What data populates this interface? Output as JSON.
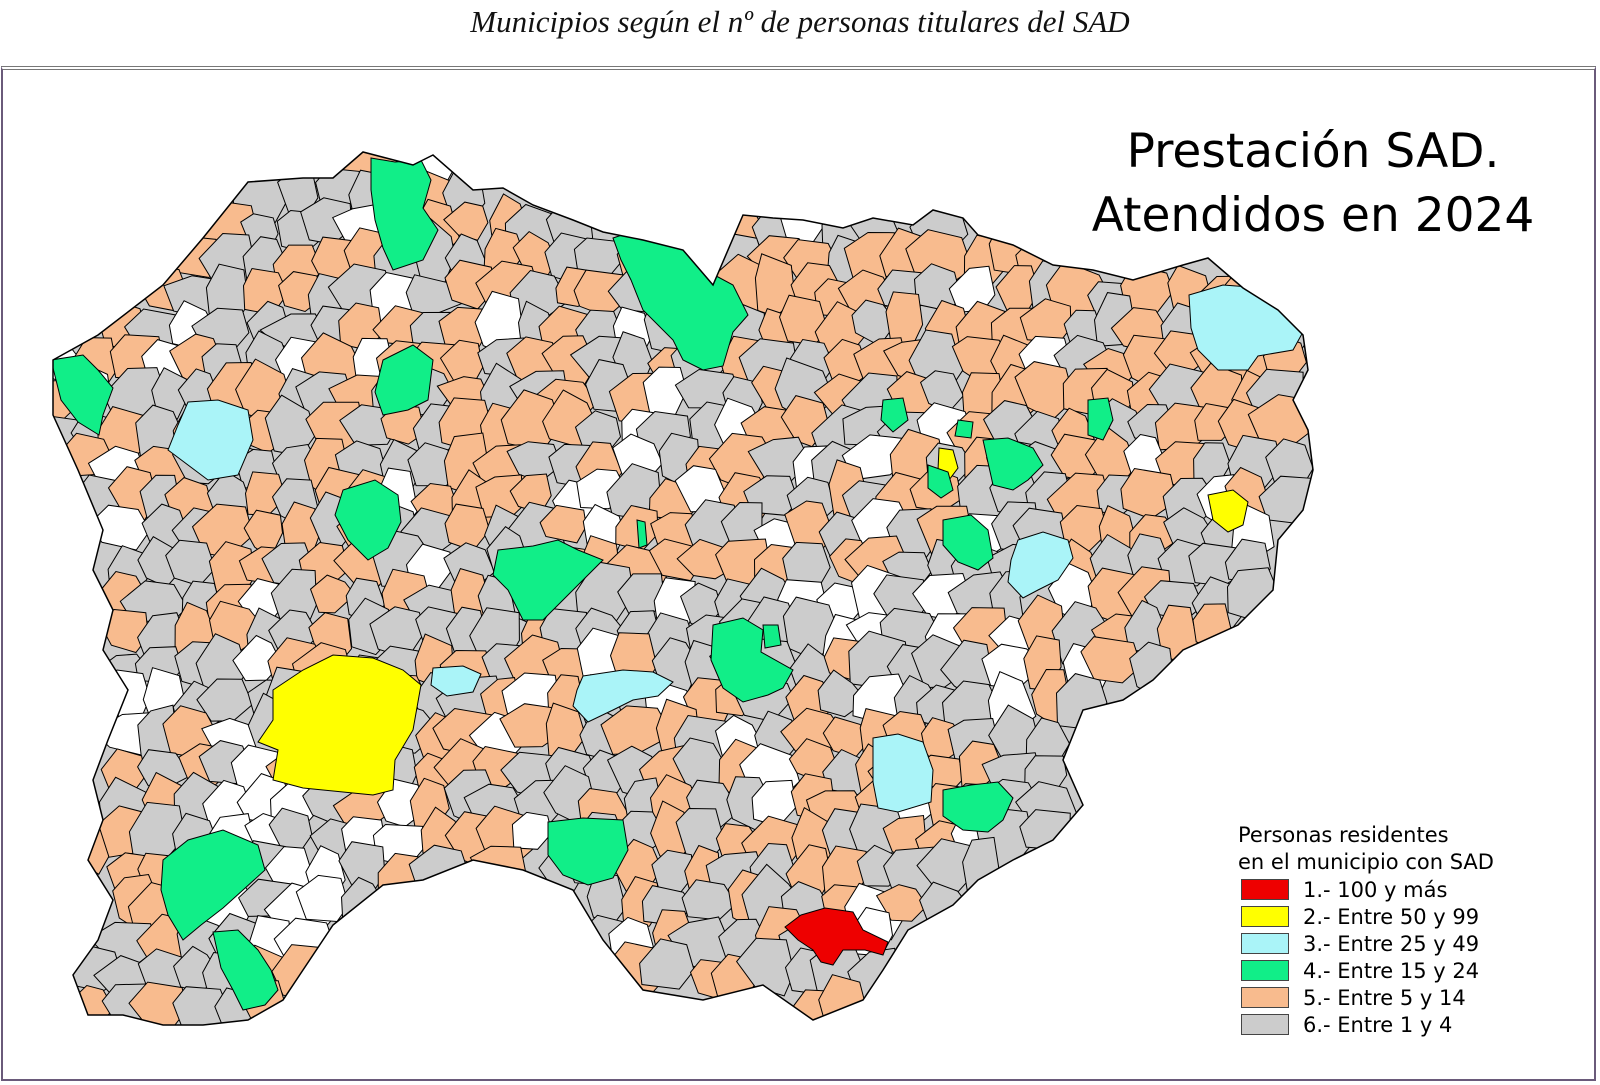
{
  "caption": "Municipios según el nº de personas titulares del SAD",
  "map": {
    "title_line1": "Prestación SAD.",
    "title_line2": "Atendidos en 2024",
    "legend": {
      "heading_line1": "Personas residentes",
      "heading_line2": "en el municipio con  SAD",
      "items": [
        {
          "label": "1.- 100 y más",
          "color": "#ee0000"
        },
        {
          "label": "2.- Entre 50 y 99",
          "color": "#ffff00"
        },
        {
          "label": "3.- Entre 25 y 49",
          "color": "#aaf4f8"
        },
        {
          "label": "4.- Entre 15 y 24",
          "color": "#11ee88"
        },
        {
          "label": "5.- Entre 5 y 14",
          "color": "#f8bb8e"
        },
        {
          "label": "6.- Entre 1 y 4",
          "color": "#cccccc"
        }
      ]
    },
    "no_data_color": "#ffffff",
    "border_color": "#000000"
  }
}
